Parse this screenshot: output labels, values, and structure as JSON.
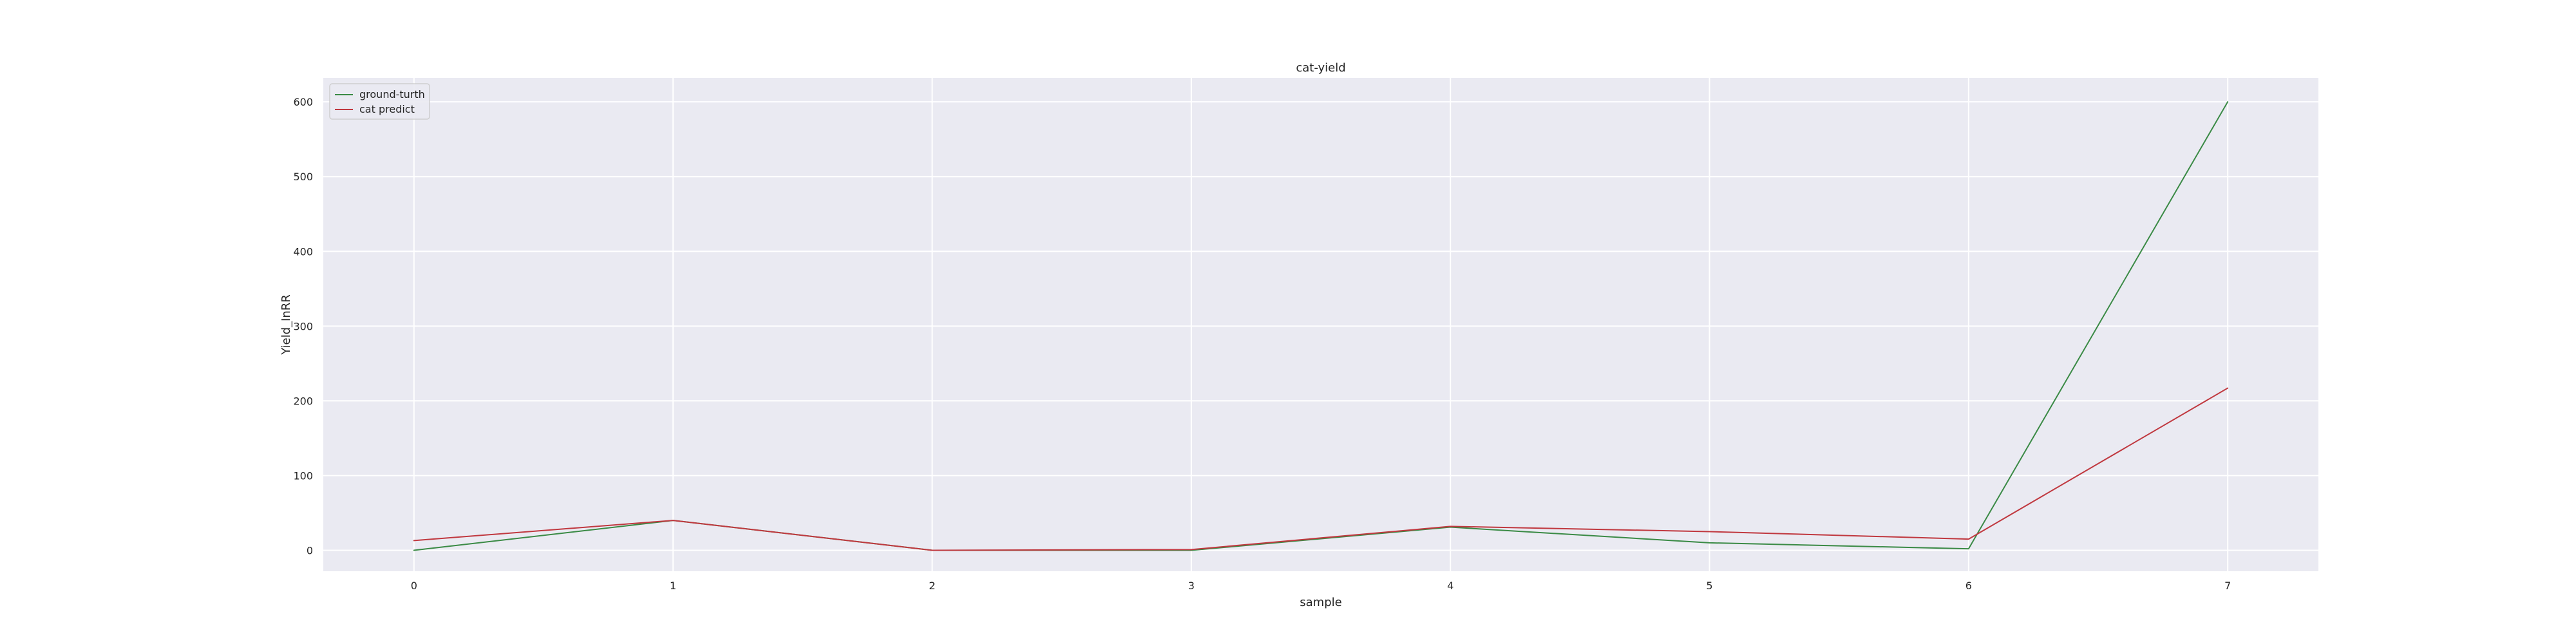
{
  "chart_data": {
    "type": "line",
    "title": "cat-yield",
    "xlabel": "sample",
    "ylabel": "Yield_InRR",
    "x": [
      0,
      1,
      2,
      3,
      4,
      5,
      6,
      7
    ],
    "x_ticks": [
      "0",
      "1",
      "2",
      "3",
      "4",
      "5",
      "6",
      "7"
    ],
    "y_ticks": [
      "0",
      "100",
      "200",
      "300",
      "400",
      "500",
      "600"
    ],
    "xlim": [
      -0.35,
      7.35
    ],
    "ylim": [
      -28,
      632
    ],
    "grid": true,
    "legend_position": "top-left",
    "series": [
      {
        "name": "ground-turth",
        "color": "#3a8a45",
        "values": [
          0,
          40,
          0,
          0,
          31,
          10,
          2,
          600
        ]
      },
      {
        "name": "cat predict",
        "color": "#c0383f",
        "values": [
          13,
          40,
          0,
          1,
          32,
          25,
          15,
          217
        ]
      }
    ]
  }
}
